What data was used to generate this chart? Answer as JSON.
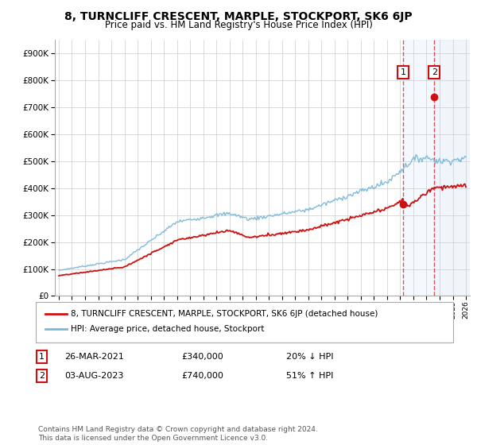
{
  "title": "8, TURNCLIFF CRESCENT, MARPLE, STOCKPORT, SK6 6JP",
  "subtitle": "Price paid vs. HM Land Registry's House Price Index (HPI)",
  "x_start_year": 1995,
  "x_end_year": 2026,
  "ylim": [
    0,
    950000
  ],
  "yticks": [
    0,
    100000,
    200000,
    300000,
    400000,
    500000,
    600000,
    700000,
    800000,
    900000
  ],
  "hpi_color": "#7ab8d9",
  "price_color": "#cc1111",
  "marker_color": "#cc1111",
  "vline_color": "#cc1111",
  "shade_color": "#ddeeff",
  "t1_year": 2021.23,
  "t2_year": 2023.59,
  "t1_price": 340000,
  "t2_price": 740000,
  "transaction1": {
    "date": "26-MAR-2021",
    "price": 340000,
    "pct": "20%",
    "dir": "↓",
    "label": "1"
  },
  "transaction2": {
    "date": "03-AUG-2023",
    "price": 740000,
    "pct": "51%",
    "dir": "↑",
    "label": "2"
  },
  "legend_line1": "8, TURNCLIFF CRESCENT, MARPLE, STOCKPORT, SK6 6JP (detached house)",
  "legend_line2": "HPI: Average price, detached house, Stockport",
  "footnote": "Contains HM Land Registry data © Crown copyright and database right 2024.\nThis data is licensed under the Open Government Licence v3.0.",
  "background_color": "#ffffff",
  "grid_color": "#cccccc"
}
